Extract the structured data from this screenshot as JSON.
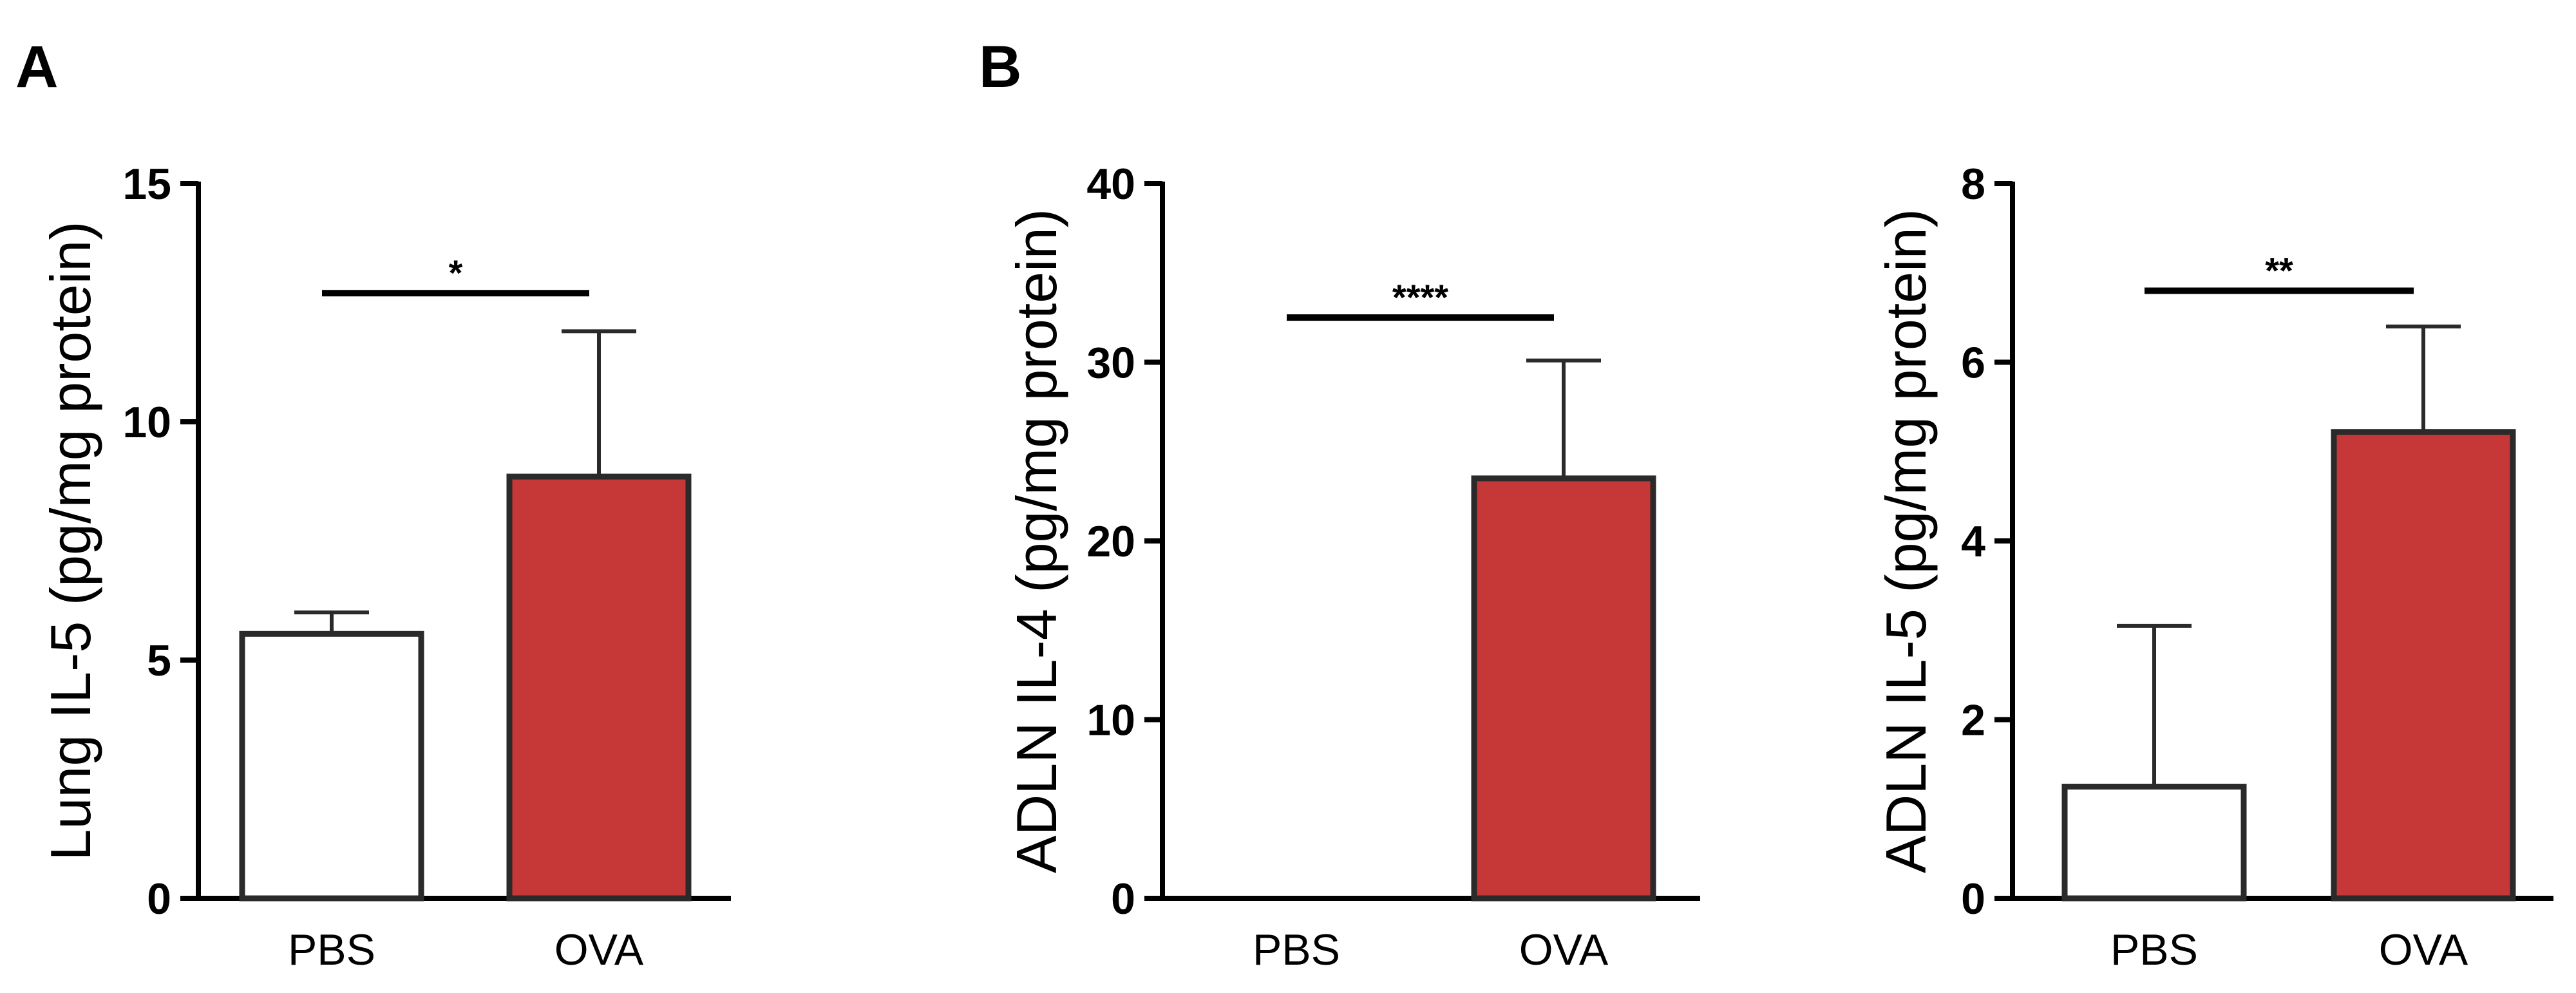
{
  "panels": [
    {
      "letter": "A"
    },
    {
      "letter": "B"
    }
  ],
  "colors": {
    "pbs": "#ffffff",
    "ova": "#c63737",
    "outline": "#2a2a2a"
  },
  "chart_data": [
    {
      "type": "bar",
      "panel": "A",
      "title": "",
      "xlabel": "",
      "ylabel": "Lung IL-5 (pg/mg protein)",
      "ylim": [
        0,
        15
      ],
      "yticks": [
        0,
        5,
        10,
        15
      ],
      "categories": [
        "PBS",
        "OVA"
      ],
      "values": [
        5.55,
        8.85
      ],
      "errors": [
        0.45,
        3.05
      ],
      "colors": [
        "#ffffff",
        "#c63737"
      ],
      "significance": {
        "from": 0,
        "to": 1,
        "label": "*",
        "y": 12.7
      }
    },
    {
      "type": "bar",
      "panel": "B",
      "title": "",
      "xlabel": "",
      "ylabel": "ADLN IL-4 (pg/mg protein)",
      "ylim": [
        0,
        40
      ],
      "yticks": [
        0,
        10,
        20,
        30,
        40
      ],
      "categories": [
        "PBS",
        "OVA"
      ],
      "values": [
        0,
        23.5
      ],
      "errors": [
        0,
        6.6
      ],
      "colors": [
        "#ffffff",
        "#c63737"
      ],
      "significance": {
        "from": 0,
        "to": 1,
        "label": "****",
        "y": 32.5
      }
    },
    {
      "type": "bar",
      "panel": "B",
      "title": "",
      "xlabel": "",
      "ylabel": "ADLN IL-5 (pg/mg protein)",
      "ylim": [
        0,
        8
      ],
      "yticks": [
        0,
        2,
        4,
        6,
        8
      ],
      "categories": [
        "PBS",
        "OVA"
      ],
      "values": [
        1.25,
        5.22
      ],
      "errors": [
        1.8,
        1.18
      ],
      "colors": [
        "#ffffff",
        "#c63737"
      ],
      "significance": {
        "from": 0,
        "to": 1,
        "label": "**",
        "y": 6.8
      }
    }
  ]
}
